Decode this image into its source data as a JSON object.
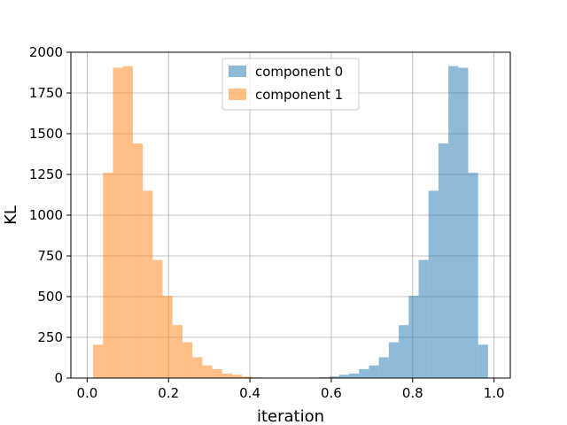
{
  "chart_data": {
    "type": "bar",
    "xlabel": "iteration",
    "ylabel": "KL",
    "xlim": [
      -0.04,
      1.04
    ],
    "ylim": [
      0,
      2000
    ],
    "grid": true,
    "legend_position": "top-center",
    "x_ticks": [
      "0.0",
      "0.2",
      "0.4",
      "0.6",
      "0.8",
      "1.0"
    ],
    "y_ticks": [
      "0",
      "250",
      "500",
      "750",
      "1000",
      "1250",
      "1500",
      "1750",
      "2000"
    ],
    "x_tick_values": [
      0.0,
      0.2,
      0.4,
      0.6,
      0.8,
      1.0
    ],
    "y_tick_values": [
      0,
      250,
      500,
      750,
      1000,
      1250,
      1500,
      1750,
      2000
    ],
    "bin_width": 0.0244,
    "series": [
      {
        "name": "component 0",
        "color": "#1f77b4",
        "opacity": 0.5,
        "bin_starts": [
          0.5706,
          0.595,
          0.6194,
          0.6438,
          0.6682,
          0.6926,
          0.717,
          0.7414,
          0.7658,
          0.7902,
          0.8146,
          0.839,
          0.8634,
          0.8878,
          0.9122,
          0.9366,
          0.961
        ],
        "values": [
          5,
          10,
          20,
          28,
          55,
          78,
          128,
          220,
          325,
          505,
          725,
          1150,
          1440,
          1915,
          1905,
          1260,
          205
        ]
      },
      {
        "name": "component 1",
        "color": "#ff7f0e",
        "opacity": 0.5,
        "bin_starts": [
          0.0146,
          0.039,
          0.0634,
          0.0878,
          0.1122,
          0.1366,
          0.161,
          0.1854,
          0.2098,
          0.2342,
          0.2586,
          0.283,
          0.3074,
          0.3318,
          0.3562,
          0.3806,
          0.405
        ],
        "values": [
          205,
          1260,
          1905,
          1915,
          1440,
          1150,
          725,
          505,
          325,
          220,
          128,
          78,
          55,
          28,
          20,
          10,
          5
        ]
      }
    ]
  }
}
